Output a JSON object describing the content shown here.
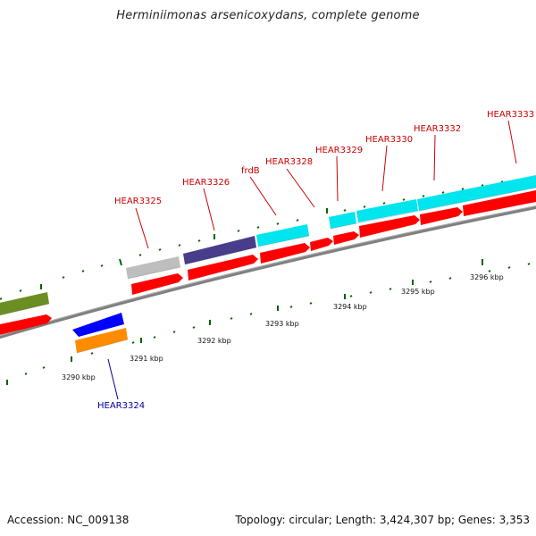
{
  "title": "Herminiimonas arsenicoxydans, complete genome",
  "footer": {
    "accession": "Accession: NC_009138",
    "topology": "Topology: circular; Length: 3,424,307 bp; Genes: 3,353"
  },
  "colors": {
    "forward_cds": "#ff0000",
    "reverse_cds": "#ff0000",
    "backbone": "#808080",
    "ticks": "#006400",
    "label_forward": "#cc0000",
    "label_reverse": "#000099",
    "cog_cyan": "#00e5ee",
    "cog_slate": "#483d8b",
    "cog_gray": "#bebebe",
    "cog_olive": "#6b8e23",
    "cog_blue": "#0000ff",
    "cog_orange": "#ff8c00"
  },
  "kbp_ticks": [
    "3290 kbp",
    "3291 kbp",
    "3292 kbp",
    "3293 kbp",
    "3294 kbp",
    "3295 kbp",
    "3296 kbp"
  ],
  "gene_labels": [
    {
      "name": "HEAR3324",
      "strand": "reverse"
    },
    {
      "name": "HEAR3325",
      "strand": "forward"
    },
    {
      "name": "HEAR3326",
      "strand": "forward"
    },
    {
      "name": "frdB",
      "strand": "forward"
    },
    {
      "name": "HEAR3328",
      "strand": "forward"
    },
    {
      "name": "HEAR3329",
      "strand": "forward"
    },
    {
      "name": "HEAR3330",
      "strand": "forward"
    },
    {
      "name": "HEAR3332",
      "strand": "forward"
    },
    {
      "name": "HEAR3333",
      "strand": "forward"
    }
  ]
}
